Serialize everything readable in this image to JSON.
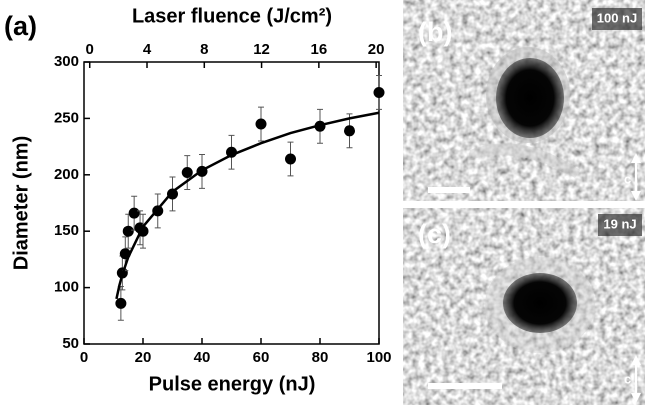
{
  "chart_data": {
    "type": "scatter",
    "panel_label": "(a)",
    "xlabel": "Pulse energy (nJ)",
    "ylabel": "Diameter (nm)",
    "x2label": "Laser fluence (J/cm²)",
    "xlim": [
      0,
      100
    ],
    "xticks": [
      0,
      20,
      40,
      60,
      80,
      100
    ],
    "ylim": [
      50,
      300
    ],
    "yticks": [
      50,
      100,
      150,
      200,
      250,
      300
    ],
    "x2lim": [
      -0.4,
      20.2
    ],
    "x2ticks": [
      0,
      4,
      8,
      12,
      16,
      20
    ],
    "series": [
      {
        "mode": "markers",
        "color": "#000000",
        "x": [
          12.5,
          13,
          14,
          15,
          17,
          19,
          20,
          25,
          30,
          35,
          40,
          50,
          60,
          70,
          80,
          90,
          100
        ],
        "values": [
          86,
          113,
          130,
          150,
          166,
          153,
          150,
          168,
          183,
          202,
          203,
          220,
          245,
          214,
          243,
          239,
          273
        ],
        "errors": [
          15,
          15,
          15,
          15,
          15,
          15,
          15,
          15,
          15,
          15,
          15,
          15,
          15,
          15,
          15,
          15,
          15
        ]
      },
      {
        "mode": "line",
        "color": "#000000",
        "x": [
          11,
          12,
          13,
          15,
          20,
          30,
          40,
          50,
          60,
          70,
          80,
          90,
          100
        ],
        "values": [
          90,
          102,
          111.5,
          127,
          154,
          185,
          204,
          217.5,
          228,
          237,
          244,
          250,
          255
        ]
      }
    ]
  },
  "images": [
    {
      "label": "(b)",
      "energy": "100 nJ",
      "axis": "c"
    },
    {
      "label": "(c)",
      "energy": "19 nJ",
      "axis": "c"
    }
  ]
}
